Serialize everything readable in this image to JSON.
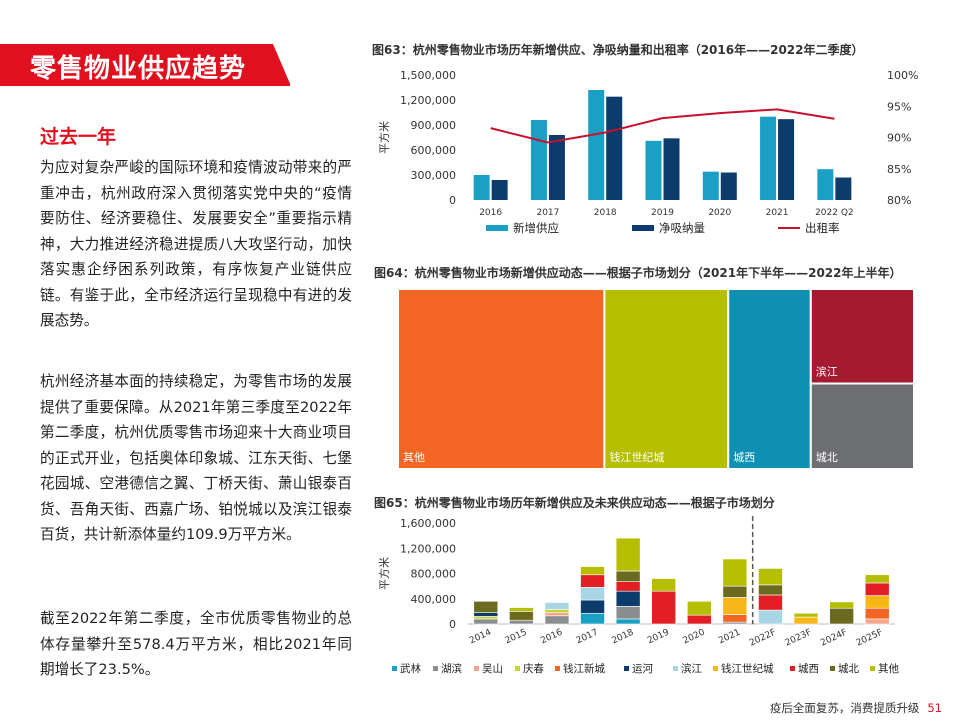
{
  "page": {
    "title": "零售物业供应趋势",
    "sub_heading": "过去一年",
    "paragraphs": [
      "为应对复杂严峻的国际环境和疫情波动带来的严重冲击，杭州政府深入贯彻落实党中央的“疫情要防住、经济要稳住、发展要安全”重要指示精神，大力推进经济稳进提质八大攻坚行动，加快落实惠企纾困系列政策，有序恢复产业链供应链。有鉴于此，全市经济运行呈现稳中有进的发展态势。",
      "杭州经济基本面的持续稳定，为零售市场的发展提供了重要保障。从2021年第三季度至2022年第二季度，杭州优质零售市场迎来十大商业项目的正式开业，包括奥体印象城、江东天街、七堡花园城、空港德信之翼、丁桥天街、萧山银泰百货、吾角天街、西嘉广场、铂悦城以及滨江银泰百货，共计新添体量约109.9万平方米。",
      "截至2022年第二季度，全市优质零售物业的总体存量攀升至578.4万平方米，相比2021年同期增长了23.5%。"
    ],
    "footer_text": "疫后全面复苏，消费提质升级",
    "page_number": "51"
  },
  "chart_data": [
    {
      "id": "fig63",
      "type": "bar",
      "title": "图63：杭州零售物业市场历年新增供应、净吸纳量和出租率（2016年——2022年二季度）",
      "categories": [
        "2016",
        "2017",
        "2018",
        "2019",
        "2020",
        "2021",
        "2022 Q2"
      ],
      "ylabel": "平方米",
      "ylim": [
        0,
        1500000
      ],
      "y_ticks": [
        "0",
        "300,000",
        "600,000",
        "900,000",
        "1,200,000",
        "1,500,000"
      ],
      "y2lim": [
        80,
        100
      ],
      "y2_ticks": [
        "80%",
        "85%",
        "90%",
        "95%",
        "100%"
      ],
      "series": [
        {
          "name": "新增供应",
          "type": "bar",
          "color": "#1aa0c4",
          "values": [
            300000,
            960000,
            1320000,
            710000,
            340000,
            1000000,
            370000
          ]
        },
        {
          "name": "净吸纳量",
          "type": "bar",
          "color": "#0b3c6b",
          "values": [
            240000,
            780000,
            1240000,
            740000,
            330000,
            970000,
            270000
          ]
        },
        {
          "name": "出租率",
          "type": "line",
          "axis": "right",
          "color": "#c8102e",
          "values": [
            91.5,
            89.2,
            90.8,
            93.1,
            93.9,
            94.5,
            93.0
          ]
        }
      ],
      "legend": "bottom",
      "grid": false
    },
    {
      "id": "fig64",
      "type": "treemap",
      "title": "图64：杭州零售物业市场新增供应动态——根据子市场划分（2021年下半年——2022年上半年）",
      "items": [
        {
          "name": "其他",
          "value": 40,
          "color": "#f26522"
        },
        {
          "name": "钱江世纪城",
          "value": 24,
          "color": "#b5be00"
        },
        {
          "name": "城西",
          "value": 16,
          "color": "#0e90b5"
        },
        {
          "name": "滨江",
          "value": 10.5,
          "color": "#a51a2f"
        },
        {
          "name": "城北",
          "value": 9.5,
          "color": "#6d6e71"
        }
      ]
    },
    {
      "id": "fig65",
      "type": "stacked_bar",
      "title": "图65：杭州零售物业市场历年新增供应及未来供应动态——根据子市场划分",
      "categories": [
        "2014",
        "2015",
        "2016",
        "2017",
        "2018",
        "2019",
        "2020",
        "2021",
        "2022F",
        "2023F",
        "2024F",
        "2025F"
      ],
      "forecast_divider_after": "2021",
      "ylabel": "平方米",
      "ylim": [
        0,
        1600000
      ],
      "y_ticks": [
        "0",
        "400,000",
        "800,000",
        "1,200,000",
        "1,600,000"
      ],
      "series": [
        {
          "name": "武林",
          "color": "#1aa0c4",
          "values": [
            0,
            0,
            0,
            170000,
            80000,
            0,
            0,
            0,
            0,
            0,
            0,
            0
          ]
        },
        {
          "name": "湖滨",
          "color": "#8a8c8e",
          "values": [
            80000,
            60000,
            130000,
            0,
            200000,
            0,
            0,
            30000,
            0,
            0,
            0,
            0
          ]
        },
        {
          "name": "吴山",
          "color": "#f7a58a",
          "values": [
            0,
            0,
            50000,
            0,
            0,
            0,
            0,
            0,
            0,
            0,
            0,
            80000
          ]
        },
        {
          "name": "庆春",
          "color": "#c6d22d",
          "values": [
            40000,
            0,
            50000,
            0,
            0,
            0,
            0,
            0,
            0,
            0,
            0,
            0
          ]
        },
        {
          "name": "钱江新城",
          "color": "#f26522",
          "values": [
            0,
            0,
            0,
            0,
            0,
            0,
            0,
            120000,
            0,
            0,
            0,
            170000
          ]
        },
        {
          "name": "运河",
          "color": "#0b3c6b",
          "values": [
            60000,
            0,
            0,
            210000,
            240000,
            0,
            0,
            0,
            0,
            0,
            0,
            0
          ]
        },
        {
          "name": "滨江",
          "color": "#a9d6e5",
          "values": [
            0,
            0,
            110000,
            200000,
            0,
            0,
            0,
            0,
            220000,
            0,
            0,
            0
          ]
        },
        {
          "name": "钱江世纪城",
          "color": "#f7b718",
          "values": [
            0,
            0,
            0,
            0,
            0,
            0,
            0,
            270000,
            0,
            110000,
            0,
            200000
          ]
        },
        {
          "name": "城西",
          "color": "#e31e24",
          "values": [
            0,
            0,
            0,
            200000,
            150000,
            520000,
            140000,
            0,
            240000,
            0,
            0,
            200000
          ]
        },
        {
          "name": "城北",
          "color": "#6b6a1e",
          "values": [
            180000,
            140000,
            0,
            0,
            170000,
            0,
            0,
            180000,
            160000,
            0,
            250000,
            0
          ]
        },
        {
          "name": "其他",
          "color": "#b5be00",
          "values": [
            0,
            60000,
            0,
            130000,
            520000,
            200000,
            220000,
            430000,
            260000,
            60000,
            100000,
            130000
          ]
        }
      ],
      "legend": "bottom",
      "grid": false
    }
  ]
}
